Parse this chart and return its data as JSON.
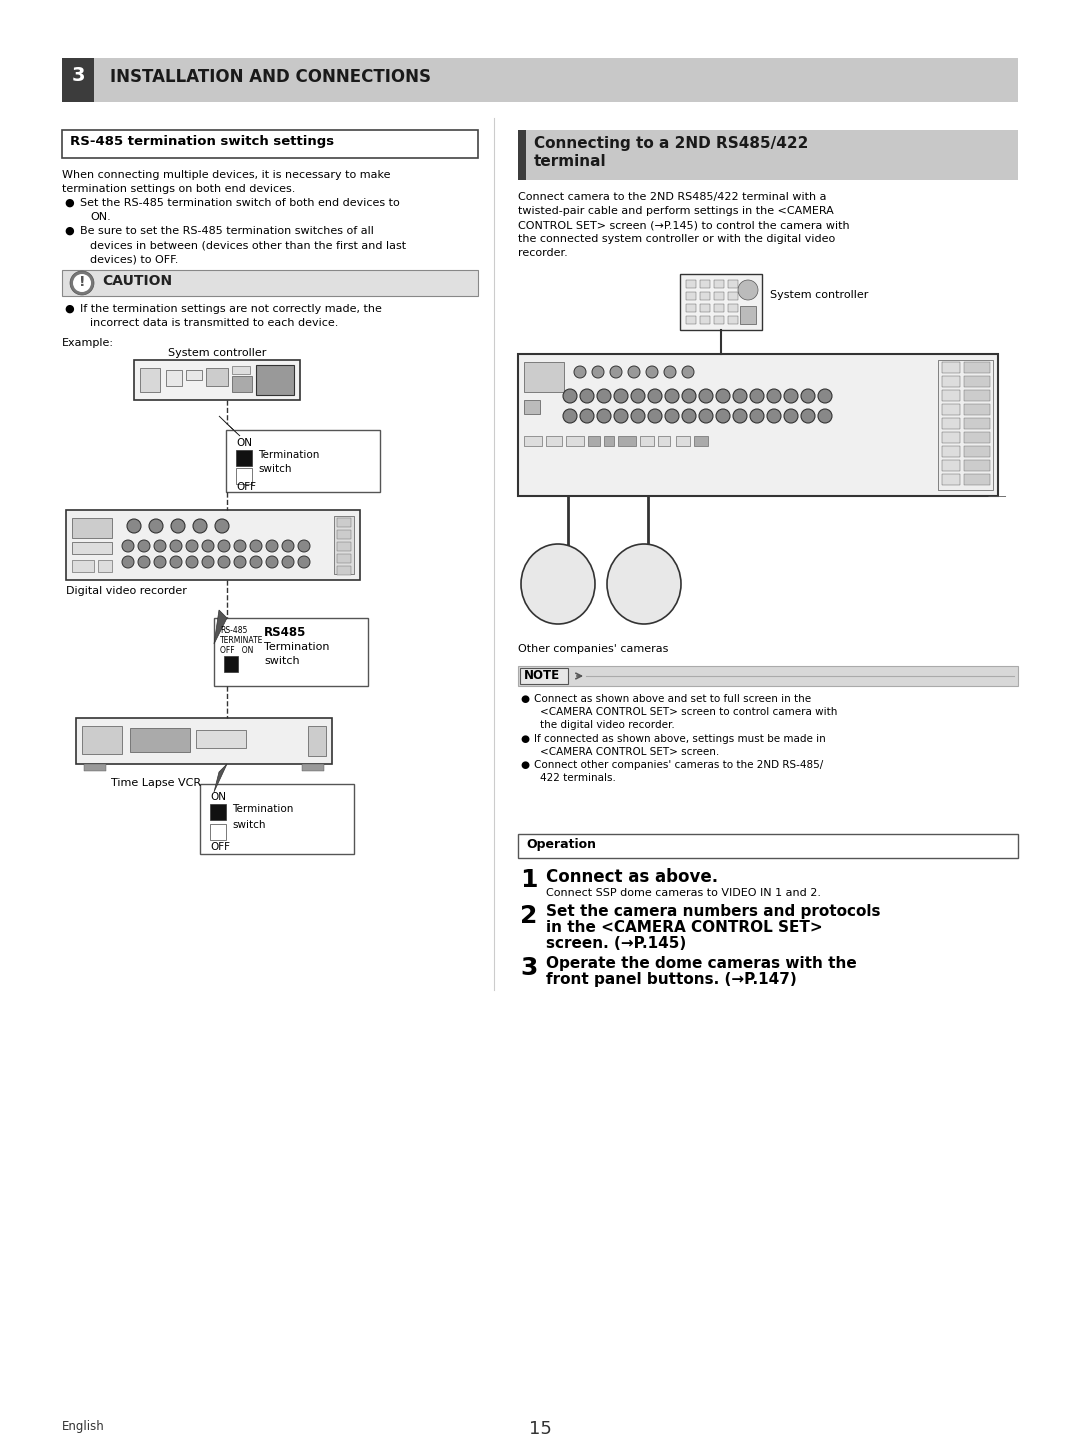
{
  "page_bg": "#ffffff",
  "header_bg": "#c0c0c0",
  "header_dark": "#3a3a3a",
  "header_num": "3",
  "header_title": "INSTALLATION AND CONNECTIONS",
  "left_box_title": "RS-485 termination switch settings",
  "left_intro1": "When connecting multiple devices, it is necessary to make",
  "left_intro2": "termination settings on both end devices.",
  "left_b1a": "Set the RS-485 termination switch of both end devices to",
  "left_b1b": "ON.",
  "left_b2a": "Be sure to set the RS-485 termination switches of all",
  "left_b2b": "devices in between (devices other than the first and last",
  "left_b2c": "devices) to OFF.",
  "caution_title": "CAUTION",
  "caution_b1a": "If the termination settings are not correctly made, the",
  "caution_b1b": "incorrect data is transmitted to each device.",
  "example_label": "Example:",
  "sys_ctrl_label": "System controller",
  "dvr_label": "Digital video recorder",
  "rs485_small1": "RS-485",
  "rs485_small2": "TERMINATE",
  "rs485_small3": "OFF   ON",
  "rs485_big": "RS485",
  "rs485_text": "Termination",
  "rs485_sw": "switch",
  "time_lapse_label": "Time Lapse VCR",
  "term_on": "ON",
  "term_off": "OFF",
  "term_text1": "Termination",
  "term_text2": "switch",
  "right_box_title1": "Connecting to a 2ND RS485/422",
  "right_box_title2": "terminal",
  "right_intro1": "Connect camera to the 2ND RS485/422 terminal with a",
  "right_intro2": "twisted-pair cable and perform settings in the <CAMERA",
  "right_intro3": "CONTROL SET> screen (→P.145) to control the camera with",
  "right_intro4": "the connected system controller or with the digital video",
  "right_intro5": "recorder.",
  "right_sys_label": "System controller",
  "right_cam_label": "Other companies' cameras",
  "note_title": "NOTE",
  "note_b1a": "Connect as shown above and set to full screen in the",
  "note_b1b": "<CAMERA CONTROL SET> screen to control camera with",
  "note_b1c": "the digital video recorder.",
  "note_b2a": "If connected as shown above, settings must be made in",
  "note_b2b": "<CAMERA CONTROL SET> screen.",
  "note_b3a": "Connect other companies' cameras to the 2ND RS-485/",
  "note_b3b": "422 terminals.",
  "op_box_title": "Operation",
  "op1_num": "1",
  "op1_title": "Connect as above.",
  "op1_text": "Connect SSP dome cameras to VIDEO IN 1 and 2.",
  "op2_num": "2",
  "op2_title1": "Set the camera numbers and protocols",
  "op2_title2": "in the <CAMERA CONTROL SET>",
  "op2_title3": "screen. (→P.145)",
  "op3_num": "3",
  "op3_title1": "Operate the dome cameras with the",
  "op3_title2": "front panel buttons. (→P.147)",
  "footer_left": "English",
  "footer_center": "15"
}
